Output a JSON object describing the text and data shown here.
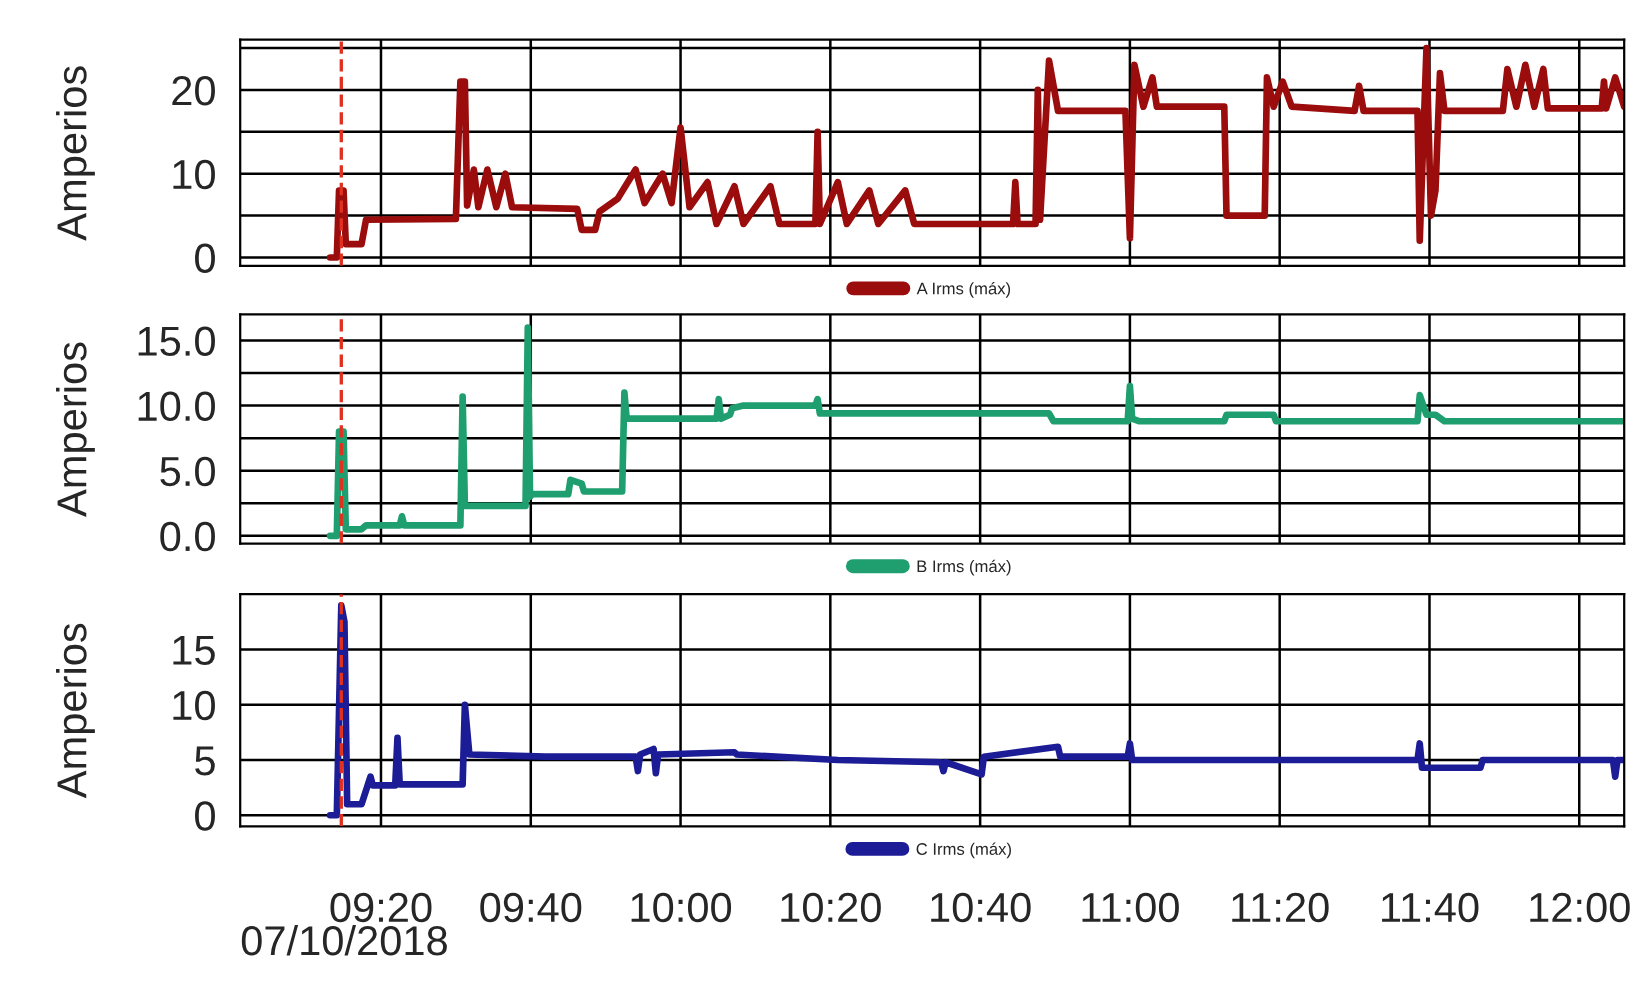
{
  "chart_data": [
    {
      "type": "line",
      "ylabel": "Amperios",
      "xlim": [
        9.02,
        12.1
      ],
      "ylim": [
        -1,
        26
      ],
      "yticks": [
        0,
        {
          "value": 5,
          "label": null
        },
        10,
        {
          "value": 15,
          "label": null
        },
        20,
        {
          "value": 25,
          "label": null
        }
      ],
      "xticks": [
        {
          "value": 9.3333,
          "label": null
        },
        {
          "value": 9.6667,
          "label": null
        },
        {
          "value": 10.0,
          "label": null
        },
        {
          "value": 10.3333,
          "label": null
        },
        {
          "value": 10.6667,
          "label": null
        },
        {
          "value": 11.0,
          "label": null
        },
        {
          "value": 11.3333,
          "label": null
        },
        {
          "value": 11.6667,
          "label": null
        },
        {
          "value": 12.0,
          "label": null
        }
      ],
      "tick_labels": "y",
      "grid": true,
      "legend": "bottom",
      "ref_lines": [
        {
          "axis": "x",
          "value": 9.245,
          "color": "#e03020",
          "line_style": "dashed"
        }
      ],
      "series": [
        {
          "name": "A Irms (máx)",
          "color": "#9b0c0c",
          "x": [
            9.22,
            9.235,
            9.24,
            9.25,
            9.255,
            9.29,
            9.3,
            9.5,
            9.51,
            9.52,
            9.525,
            9.54,
            9.55,
            9.57,
            9.59,
            9.61,
            9.625,
            9.77,
            9.78,
            9.81,
            9.82,
            9.86,
            9.9,
            9.92,
            9.96,
            9.98,
            10.0,
            10.02,
            10.06,
            10.08,
            10.12,
            10.14,
            10.2,
            10.22,
            10.3,
            10.305,
            10.31,
            10.35,
            10.37,
            10.42,
            10.44,
            10.5,
            10.52,
            10.74,
            10.745,
            10.75,
            10.79,
            10.795,
            10.8,
            10.82,
            10.84,
            10.99,
            11.0,
            11.01,
            11.03,
            11.05,
            11.06,
            11.21,
            11.215,
            11.3,
            11.305,
            11.32,
            11.34,
            11.36,
            11.5,
            11.51,
            11.52,
            11.64,
            11.645,
            11.66,
            11.67,
            11.68,
            11.69,
            11.7,
            11.83,
            11.84,
            11.86,
            11.88,
            11.9,
            11.92,
            11.93,
            12.05,
            12.055,
            12.06,
            12.08,
            12.1
          ],
          "values": [
            0,
            0,
            8,
            8,
            1.6,
            1.6,
            4.5,
            4.6,
            21,
            21,
            6.2,
            10.5,
            6,
            10.5,
            6,
            10,
            6,
            5.8,
            3.3,
            3.3,
            5.5,
            7,
            10.5,
            6.5,
            10,
            6.5,
            15.5,
            6,
            9,
            4,
            8.5,
            4,
            8.5,
            4,
            4,
            15,
            4,
            9,
            4,
            8,
            4,
            8,
            4,
            4,
            9,
            4,
            4,
            20,
            4.5,
            23.5,
            17.5,
            17.5,
            2.3,
            23,
            18,
            21.5,
            18,
            18,
            5,
            5,
            21.5,
            18,
            21,
            18,
            17.5,
            20.5,
            17.5,
            17.5,
            2,
            25,
            5,
            8,
            22,
            17.5,
            17.5,
            22.5,
            18,
            23,
            18,
            22.5,
            17.8,
            17.8,
            21,
            17.8,
            21.5,
            18
          ]
        }
      ]
    },
    {
      "type": "line",
      "ylabel": "Amperios",
      "xlim": [
        9.02,
        12.1
      ],
      "ylim": [
        -0.6,
        17
      ],
      "yticks": [
        {
          "value": 0,
          "label": "0.0"
        },
        {
          "value": 2.5,
          "label": null
        },
        {
          "value": 5,
          "label": "5.0"
        },
        {
          "value": 7.5,
          "label": null
        },
        {
          "value": 10,
          "label": "10.0"
        },
        {
          "value": 12.5,
          "label": null
        },
        {
          "value": 15,
          "label": "15.0"
        }
      ],
      "xticks": [
        {
          "value": 9.3333,
          "label": null
        },
        {
          "value": 9.6667,
          "label": null
        },
        {
          "value": 10.0,
          "label": null
        },
        {
          "value": 10.3333,
          "label": null
        },
        {
          "value": 10.6667,
          "label": null
        },
        {
          "value": 11.0,
          "label": null
        },
        {
          "value": 11.3333,
          "label": null
        },
        {
          "value": 11.6667,
          "label": null
        },
        {
          "value": 12.0,
          "label": null
        }
      ],
      "tick_labels": "y",
      "grid": true,
      "legend": "bottom",
      "ref_lines": [
        {
          "axis": "x",
          "value": 9.245,
          "color": "#e03020",
          "line_style": "dashed"
        }
      ],
      "series": [
        {
          "name": "B Irms (máx)",
          "color": "#1f9e6f",
          "x": [
            9.22,
            9.235,
            9.24,
            9.25,
            9.255,
            9.29,
            9.3,
            9.375,
            9.38,
            9.385,
            9.51,
            9.515,
            9.52,
            9.655,
            9.66,
            9.665,
            9.67,
            9.75,
            9.755,
            9.78,
            9.785,
            9.87,
            9.875,
            9.88,
            10.08,
            10.085,
            10.09,
            10.11,
            10.115,
            10.14,
            10.3,
            10.305,
            10.31,
            10.82,
            10.83,
            10.995,
            11.0,
            11.005,
            11.02,
            11.21,
            11.215,
            11.32,
            11.325,
            11.64,
            11.645,
            11.66,
            11.68,
            11.7,
            12.1
          ],
          "values": [
            0,
            0,
            8,
            8,
            0.5,
            0.5,
            0.8,
            0.8,
            1.5,
            0.8,
            0.8,
            10.7,
            2.3,
            2.3,
            16,
            3,
            3.2,
            3.2,
            4.3,
            4,
            3.4,
            3.4,
            11,
            9,
            9,
            10.5,
            9,
            9.3,
            9.8,
            10,
            10,
            10.5,
            9.4,
            9.4,
            8.8,
            8.8,
            11.5,
            9,
            8.8,
            8.8,
            9.3,
            9.3,
            8.8,
            8.8,
            10.8,
            9.3,
            9.3,
            8.8,
            8.8
          ]
        }
      ]
    },
    {
      "type": "line",
      "ylabel": "Amperios",
      "xlabel": "07/10/2018",
      "xlim": [
        9.02,
        12.1
      ],
      "ylim": [
        -1,
        20
      ],
      "yticks": [
        0,
        5,
        10,
        15
      ],
      "xticks": [
        {
          "value": 9.3333,
          "label": "09:20"
        },
        {
          "value": 9.6667,
          "label": "09:40"
        },
        {
          "value": 10.0,
          "label": "10:00"
        },
        {
          "value": 10.3333,
          "label": "10:20"
        },
        {
          "value": 10.6667,
          "label": "10:40"
        },
        {
          "value": 11.0,
          "label": "11:00"
        },
        {
          "value": 11.3333,
          "label": "11:20"
        },
        {
          "value": 11.6667,
          "label": "11:40"
        },
        {
          "value": 12.0,
          "label": "12:00"
        }
      ],
      "grid": true,
      "legend": "bottom",
      "ref_lines": [
        {
          "axis": "x",
          "value": 9.245,
          "color": "#e03020",
          "line_style": "dashed"
        }
      ],
      "series": [
        {
          "name": "C Irms (máx)",
          "color": "#1c1c96",
          "x": [
            9.22,
            9.235,
            9.245,
            9.252,
            9.258,
            9.29,
            9.31,
            9.315,
            9.365,
            9.37,
            9.375,
            9.515,
            9.52,
            9.53,
            9.7,
            9.9,
            9.905,
            9.91,
            9.94,
            9.945,
            9.95,
            10.12,
            10.125,
            10.35,
            10.58,
            10.585,
            10.59,
            10.67,
            10.675,
            10.84,
            10.845,
            10.995,
            11.0,
            11.005,
            11.64,
            11.645,
            11.65,
            11.78,
            11.785,
            12.075,
            12.08,
            12.085,
            12.1
          ],
          "values": [
            0,
            0,
            19,
            17.5,
            1,
            1,
            3.5,
            2.7,
            2.7,
            7,
            2.8,
            2.8,
            10,
            5.5,
            5.3,
            5.3,
            4,
            5.5,
            6,
            3.8,
            5.5,
            5.7,
            5.5,
            5,
            4.8,
            4,
            4.8,
            3.7,
            5.3,
            6.2,
            5.3,
            5.3,
            6.5,
            5,
            5,
            6.5,
            4.3,
            4.3,
            5,
            5,
            3.5,
            5,
            5
          ]
        }
      ]
    }
  ]
}
